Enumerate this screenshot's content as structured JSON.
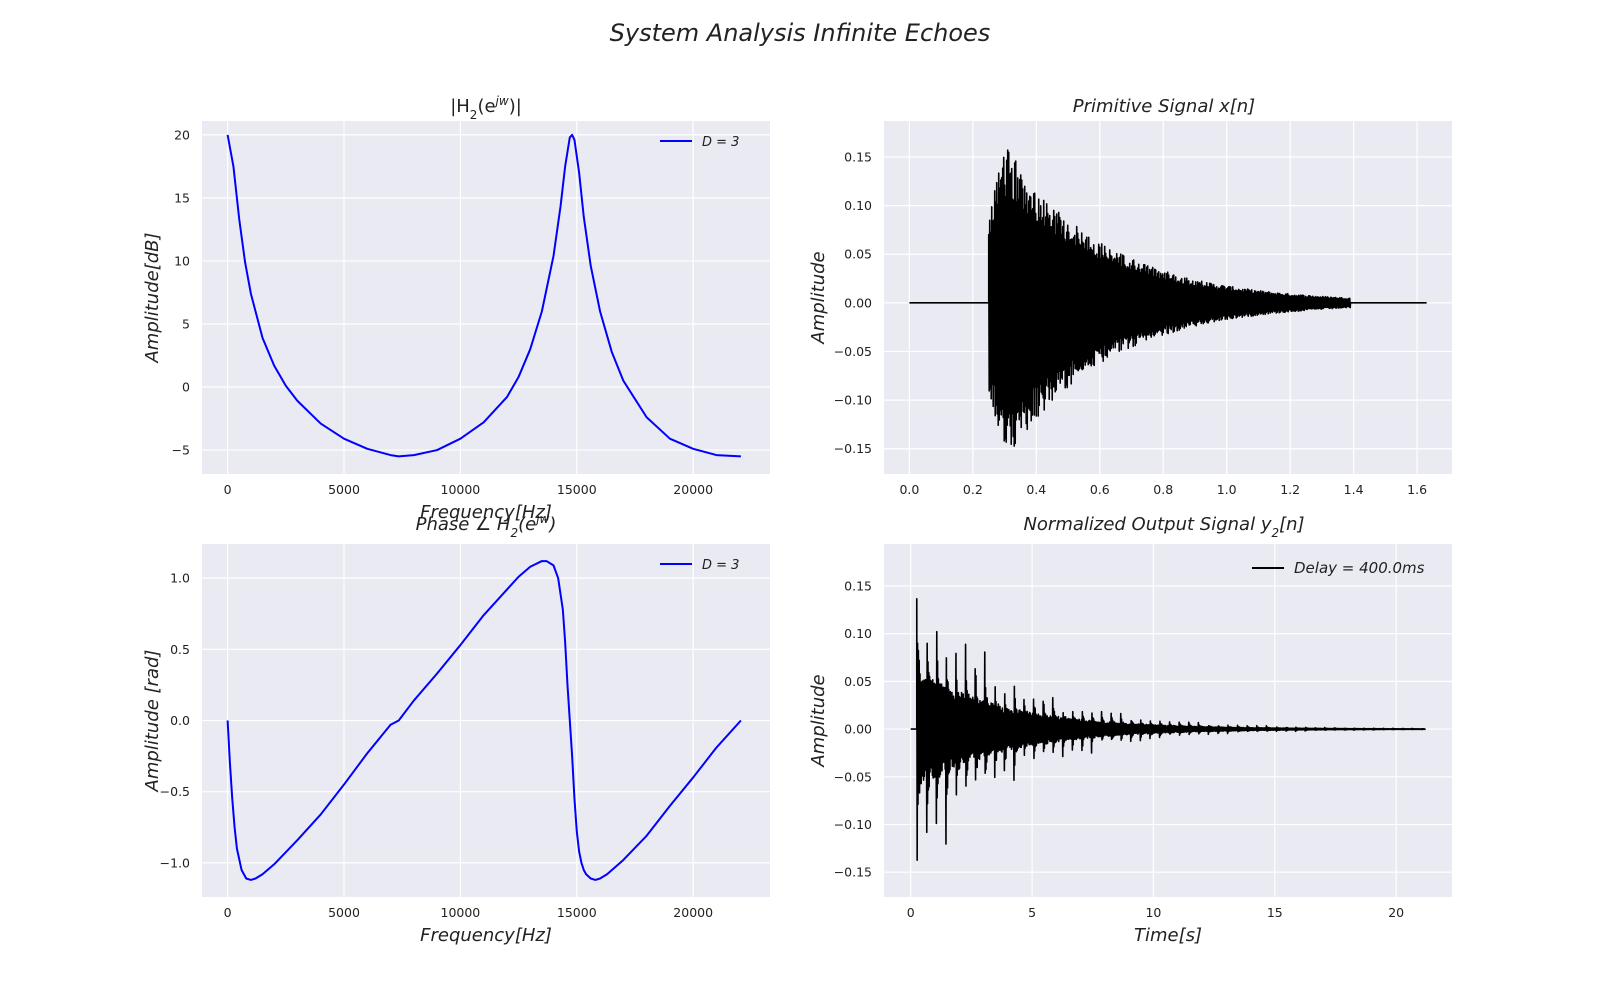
{
  "figure": {
    "suptitle": "System Analysis Infinite Echoes"
  },
  "colors": {
    "axes_bg": "#eaeaf2",
    "grid": "#ffffff",
    "blue": "#0000ff",
    "black": "#000000"
  },
  "chart_data": [
    {
      "id": "magnitude",
      "type": "line",
      "title_base": "|H",
      "title_sub": "2",
      "title_mid": "(e",
      "title_sup": "jw",
      "title_end": ")|",
      "xlabel": "Frequency[Hz]",
      "ylabel": "Amplitude[dB]",
      "xlim": [
        -1100,
        23300
      ],
      "ylim": [
        -6.9,
        21.1
      ],
      "xticks": [
        0,
        5000,
        10000,
        15000,
        20000
      ],
      "yticks": [
        -5,
        0,
        5,
        10,
        15,
        20
      ],
      "ytick_labels": [
        "−5",
        "0",
        "5",
        "10",
        "15",
        "20"
      ],
      "legend": "D = 3",
      "legend_placement": "top-right",
      "series": [
        {
          "name": "D = 3",
          "color": "#0000ff",
          "x": [
            0,
            250,
            500,
            750,
            1000,
            1500,
            2000,
            2500,
            3000,
            4000,
            5000,
            6000,
            7000,
            7350,
            8000,
            9000,
            10000,
            11000,
            12000,
            12500,
            13000,
            13500,
            14000,
            14300,
            14500,
            14700,
            14800,
            14900,
            15100,
            15300,
            15600,
            16000,
            16500,
            17000,
            18000,
            19000,
            20000,
            21000,
            22050
          ],
          "y": [
            20,
            17.5,
            13.3,
            9.9,
            7.4,
            3.9,
            1.7,
            0.1,
            -1.1,
            -2.9,
            -4.1,
            -4.9,
            -5.4,
            -5.5,
            -5.4,
            -5.0,
            -4.1,
            -2.8,
            -0.8,
            0.8,
            3.0,
            6.0,
            10.4,
            14.3,
            17.5,
            19.8,
            20.0,
            19.6,
            17.0,
            13.5,
            9.6,
            6.0,
            2.8,
            0.5,
            -2.4,
            -4.1,
            -4.9,
            -5.4,
            -5.5
          ]
        }
      ]
    },
    {
      "id": "primitive",
      "type": "line",
      "title": "Primitive Signal x[n]",
      "xlabel": "",
      "ylabel": "Amplitude",
      "xlim": [
        -0.08,
        1.71
      ],
      "ylim": [
        -0.176,
        0.187
      ],
      "xticks": [
        0.0,
        0.2,
        0.4,
        0.6,
        0.8,
        1.0,
        1.2,
        1.4,
        1.6
      ],
      "xtick_labels": [
        "0.0",
        "0.2",
        "0.4",
        "0.6",
        "0.8",
        "1.0",
        "1.2",
        "1.4",
        "1.6"
      ],
      "yticks": [
        -0.15,
        -0.1,
        -0.05,
        0.0,
        0.05,
        0.1,
        0.15
      ],
      "ytick_labels": [
        "−0.15",
        "−0.10",
        "−0.05",
        "0.00",
        "0.05",
        "0.10",
        "0.15"
      ],
      "series": [
        {
          "name": "",
          "color": "#000000",
          "signal": {
            "onset": 0.25,
            "end_active": 1.39,
            "x_end": 1.63,
            "peak": 0.17,
            "decay": 3.2
          }
        }
      ]
    },
    {
      "id": "phase",
      "type": "line",
      "title_base": "Phase ∠ H",
      "title_sub": "2",
      "title_mid": "(e",
      "title_sup": "jw",
      "title_end": ")",
      "xlabel": "Frequency[Hz]",
      "ylabel": "Amplitude [rad]",
      "xlim": [
        -1100,
        23300
      ],
      "ylim": [
        -1.24,
        1.24
      ],
      "xticks": [
        0,
        5000,
        10000,
        15000,
        20000
      ],
      "yticks": [
        -1.0,
        -0.5,
        0.0,
        0.5,
        1.0
      ],
      "ytick_labels": [
        "−1.0",
        "−0.5",
        "0.0",
        "0.5",
        "1.0"
      ],
      "legend": "D = 3",
      "legend_placement": "top-right",
      "series": [
        {
          "name": "D = 3",
          "color": "#0000ff",
          "x": [
            0,
            100,
            200,
            300,
            400,
            600,
            800,
            1000,
            1200,
            1500,
            2000,
            3000,
            4000,
            5000,
            6000,
            7000,
            7350,
            8000,
            9000,
            10000,
            11000,
            12000,
            12500,
            13000,
            13500,
            13700,
            14000,
            14200,
            14400,
            14500,
            14600,
            14700,
            14800,
            14900,
            15000,
            15100,
            15200,
            15300,
            15400,
            15600,
            15800,
            16000,
            16300,
            17000,
            18000,
            19000,
            20000,
            21000,
            22050
          ],
          "y": [
            0,
            -0.3,
            -0.55,
            -0.75,
            -0.9,
            -1.05,
            -1.11,
            -1.12,
            -1.11,
            -1.08,
            -1.01,
            -0.84,
            -0.66,
            -0.45,
            -0.23,
            -0.03,
            0.0,
            0.14,
            0.33,
            0.53,
            0.74,
            0.92,
            1.01,
            1.08,
            1.12,
            1.12,
            1.09,
            1.0,
            0.78,
            0.55,
            0.25,
            0.0,
            -0.25,
            -0.55,
            -0.78,
            -0.92,
            -1.0,
            -1.05,
            -1.08,
            -1.11,
            -1.12,
            -1.11,
            -1.08,
            -0.98,
            -0.81,
            -0.6,
            -0.4,
            -0.19,
            0.0
          ]
        }
      ]
    },
    {
      "id": "output",
      "type": "line",
      "title_base": "Normalized Output Signal y",
      "title_sub": "2",
      "title_end": "[n]",
      "xlabel": "Time[s]",
      "ylabel": "Amplitude",
      "xlim": [
        -1.1,
        22.3
      ],
      "ylim": [
        -0.176,
        0.194
      ],
      "xticks": [
        0,
        5,
        10,
        15,
        20
      ],
      "yticks": [
        -0.15,
        -0.1,
        -0.05,
        0.0,
        0.05,
        0.1,
        0.15
      ],
      "ytick_labels": [
        "−0.15",
        "−0.10",
        "−0.05",
        "0.00",
        "0.05",
        "0.10",
        "0.15"
      ],
      "legend": "Delay = 400.0ms",
      "legend_placement": "top-right",
      "series": [
        {
          "name": "Delay = 400.0ms",
          "color": "#000000",
          "signal": {
            "onset": 0.25,
            "echo_period": 0.4,
            "x_end": 21.2,
            "peak": 0.18,
            "decay": 0.27
          }
        }
      ]
    }
  ]
}
